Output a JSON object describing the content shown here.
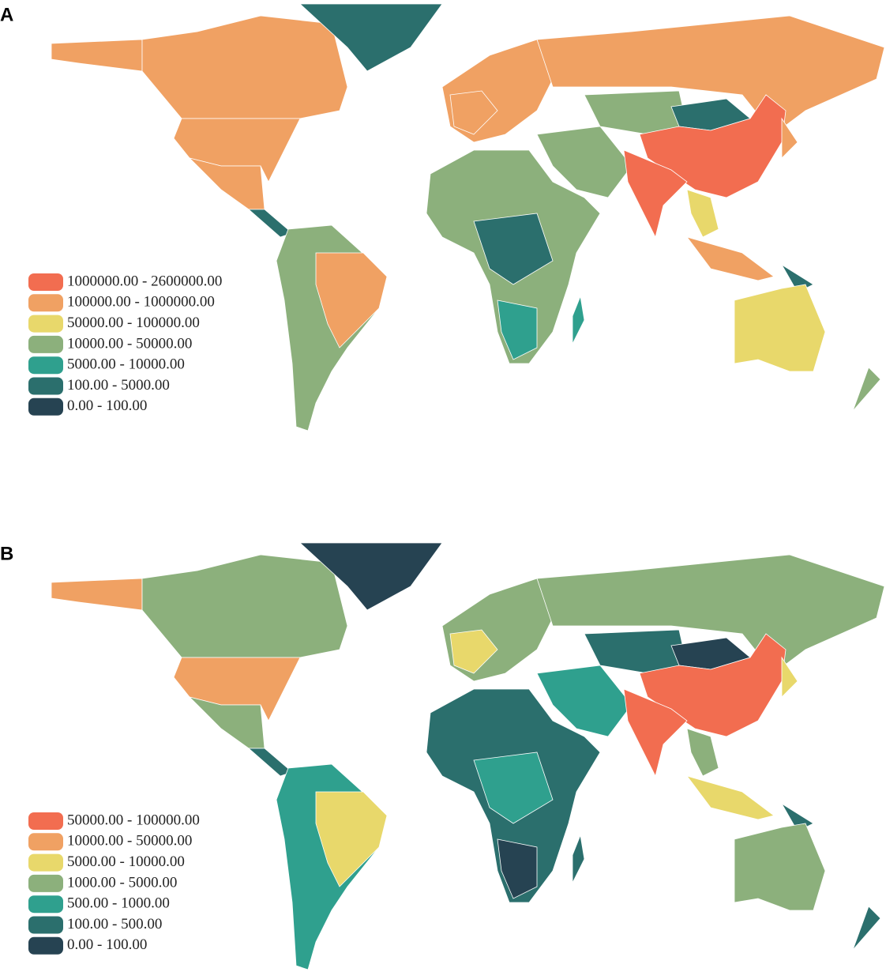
{
  "panels": [
    {
      "label": "A",
      "legend": [
        {
          "label": "1000000.00 - 2600000.00",
          "color": "#f26d50"
        },
        {
          "label": "100000.00 - 1000000.00",
          "color": "#f0a163"
        },
        {
          "label": "50000.00 - 100000.00",
          "color": "#e8d86b"
        },
        {
          "label": "10000.00 - 50000.00",
          "color": "#8cb07c"
        },
        {
          "label": "5000.00 - 10000.00",
          "color": "#2fa08e"
        },
        {
          "label": "100.00 - 5000.00",
          "color": "#2b6f6d"
        },
        {
          "label": "0.00 - 100.00",
          "color": "#264352"
        }
      ]
    },
    {
      "label": "B",
      "legend": [
        {
          "label": "50000.00 - 100000.00",
          "color": "#f26d50"
        },
        {
          "label": "10000.00 - 50000.00",
          "color": "#f0a163"
        },
        {
          "label": "5000.00 - 10000.00",
          "color": "#e8d86b"
        },
        {
          "label": "1000.00 - 5000.00",
          "color": "#8cb07c"
        },
        {
          "label": "500.00 - 1000.00",
          "color": "#2fa08e"
        },
        {
          "label": "100.00 - 500.00",
          "color": "#2b6f6d"
        },
        {
          "label": "0.00 - 100.00",
          "color": "#264352"
        }
      ]
    }
  ]
}
